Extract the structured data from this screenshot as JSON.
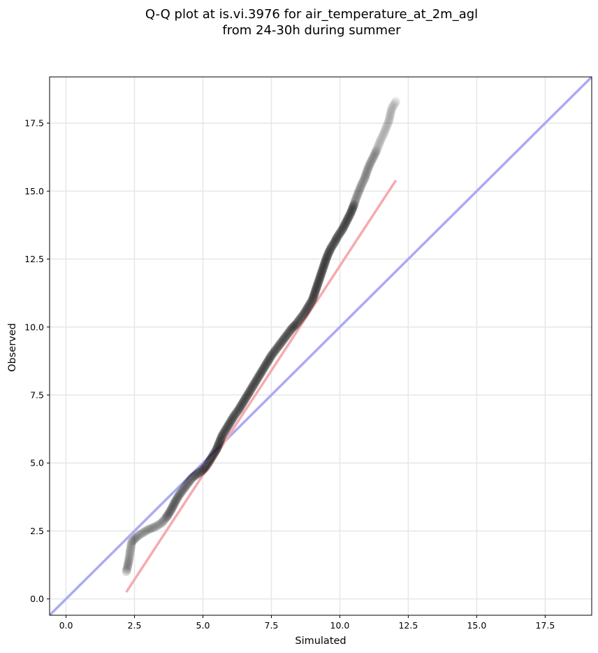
{
  "chart_data": {
    "type": "scatter",
    "title": [
      "Q-Q plot at is.vi.3976 for air_temperature_at_2m_agl",
      "from 24-30h during summer"
    ],
    "xlabel": "Simulated",
    "ylabel": "Observed",
    "xlim": [
      -0.6,
      19.2
    ],
    "ylim": [
      -0.6,
      19.2
    ],
    "xticks": [
      0.0,
      2.5,
      5.0,
      7.5,
      10.0,
      12.5,
      15.0,
      17.5
    ],
    "xtick_labels": [
      "0.0",
      "2.5",
      "5.0",
      "7.5",
      "10.0",
      "12.5",
      "15.0",
      "17.5"
    ],
    "yticks": [
      0.0,
      2.5,
      5.0,
      7.5,
      10.0,
      12.5,
      15.0,
      17.5
    ],
    "ytick_labels": [
      "0.0",
      "2.5",
      "5.0",
      "7.5",
      "10.0",
      "12.5",
      "15.0",
      "17.5"
    ],
    "grid": true,
    "reference_line": {
      "name": "",
      "color": "#aaaaf5",
      "x": [
        -0.6,
        19.2
      ],
      "y": [
        -0.6,
        19.2
      ]
    },
    "fit_line": {
      "name": "",
      "color": "#f5aaae",
      "x": [
        2.2,
        12.05
      ],
      "y": [
        0.25,
        15.4
      ]
    },
    "quantile_curve": {
      "x": [
        2.2,
        2.25,
        2.3,
        2.35,
        2.4,
        2.5,
        2.6,
        2.75,
        3.0,
        3.25,
        3.5,
        3.7,
        3.85,
        4.0,
        4.15,
        4.3,
        4.45,
        4.6,
        4.8,
        4.95,
        5.1,
        5.2,
        5.35,
        5.5,
        5.6,
        5.7,
        5.85,
        6.0,
        6.15,
        6.3,
        6.45,
        6.6,
        6.75,
        6.9,
        7.05,
        7.2,
        7.35,
        7.5,
        7.65,
        7.8,
        7.95,
        8.1,
        8.25,
        8.4,
        8.55,
        8.7,
        8.85,
        9.0,
        9.1,
        9.2,
        9.3,
        9.4,
        9.5,
        9.6,
        9.7,
        9.8,
        9.9,
        10.0,
        10.1,
        10.2,
        10.3,
        10.4,
        10.5,
        10.6,
        10.7,
        10.8,
        10.9,
        11.0,
        11.1,
        11.2,
        11.3,
        11.4,
        11.5,
        11.6,
        11.7,
        11.8,
        11.85,
        11.9,
        12.05
      ],
      "y": [
        1.0,
        1.2,
        1.45,
        1.8,
        2.1,
        2.2,
        2.3,
        2.4,
        2.55,
        2.65,
        2.8,
        3.05,
        3.3,
        3.6,
        3.85,
        4.05,
        4.25,
        4.45,
        4.6,
        4.7,
        4.85,
        5.0,
        5.25,
        5.5,
        5.75,
        6.0,
        6.25,
        6.5,
        6.75,
        6.95,
        7.2,
        7.45,
        7.7,
        7.95,
        8.2,
        8.45,
        8.7,
        8.95,
        9.15,
        9.35,
        9.55,
        9.75,
        9.95,
        10.1,
        10.3,
        10.5,
        10.75,
        11.0,
        11.3,
        11.6,
        11.9,
        12.2,
        12.5,
        12.75,
        12.95,
        13.1,
        13.3,
        13.45,
        13.6,
        13.8,
        14.0,
        14.2,
        14.45,
        14.75,
        15.0,
        15.25,
        15.45,
        15.75,
        16.0,
        16.2,
        16.4,
        16.65,
        16.9,
        17.1,
        17.35,
        17.6,
        17.85,
        18.05,
        18.3
      ]
    }
  }
}
